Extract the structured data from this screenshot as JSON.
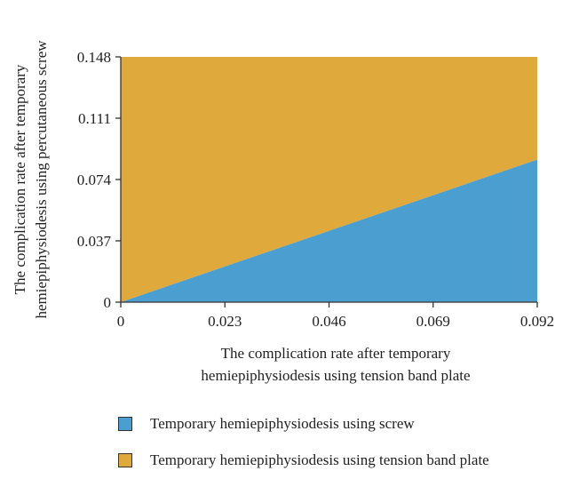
{
  "chart_data": {
    "type": "area",
    "x": [
      0,
      0.092
    ],
    "xlim": [
      0,
      0.092
    ],
    "ylim": [
      0,
      0.148
    ],
    "xticks": [
      "0",
      "0.023",
      "0.046",
      "0.069",
      "0.092"
    ],
    "yticks": [
      "0",
      "0.037",
      "0.074",
      "0.111",
      "0.148"
    ],
    "xlabel": [
      "The complication rate after temporary",
      "hemiepiphysiodesis using tension band plate"
    ],
    "ylabel": [
      "The complication rate after temporary",
      "hemiepiphysiodesis using percutaneous screw"
    ],
    "series": [
      {
        "name": "Temporary hemiepiphysiodesis using screw",
        "boundary_y": [
          0,
          0.086
        ],
        "region": "below",
        "color": "#4a9fd0"
      },
      {
        "name": "Temporary hemiepiphysiodesis using tension band plate",
        "boundary_y": [
          0,
          0.086
        ],
        "region": "above",
        "color": "#e0a93c"
      }
    ]
  }
}
